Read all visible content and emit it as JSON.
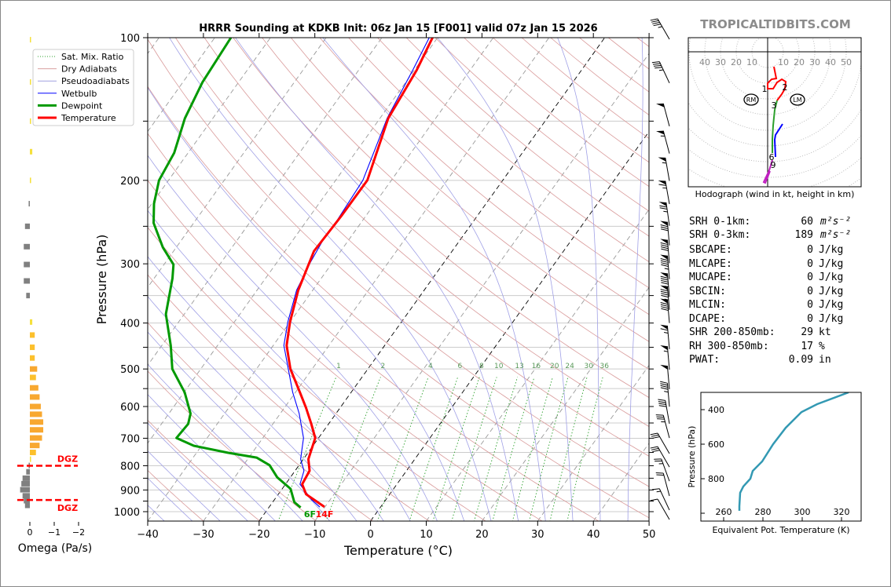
{
  "title": "HRRR Sounding at KDKB Init: 06z Jan 15 [F001] valid 07z Jan 15 2026",
  "watermark": "TROPICALTIDBITS.COM",
  "legend": [
    {
      "label": "Sat. Mix. Ratio",
      "color": "#2ca02c",
      "style": "dotted"
    },
    {
      "label": "Dry Adiabats",
      "color": "#d9a0a0",
      "style": "thin"
    },
    {
      "label": "Pseudoadiabats",
      "color": "#a0a0e0",
      "style": "thin"
    },
    {
      "label": "Wetbulb",
      "color": "#0000ff",
      "style": "solid"
    },
    {
      "label": "Dewpoint",
      "color": "#009900",
      "style": "thick"
    },
    {
      "label": "Temperature",
      "color": "#ff0000",
      "style": "thick"
    }
  ],
  "stats": [
    {
      "label": "SRH 0-1km:",
      "value": "60",
      "unit": "m²s⁻²",
      "color": "#000000"
    },
    {
      "label": "SRH 0-3km:",
      "value": "189",
      "unit": "m²s⁻²",
      "color": "#000000"
    },
    {
      "label": "SBCAPE:",
      "value": "0",
      "unit": "J/kg",
      "color": "#000000"
    },
    {
      "label": "MLCAPE:",
      "value": "0",
      "unit": "J/kg",
      "color": "#000000"
    },
    {
      "label": "MUCAPE:",
      "value": "0",
      "unit": "J/kg",
      "color": "#000000"
    },
    {
      "label": "SBCIN:",
      "value": "0",
      "unit": "J/kg",
      "color": "#000000"
    },
    {
      "label": "MLCIN:",
      "value": "0",
      "unit": "J/kg",
      "color": "#000000"
    },
    {
      "label": "DCAPE:",
      "value": "0",
      "unit": "J/kg",
      "color": "#000000"
    },
    {
      "label": "SHR 200-850mb:",
      "value": "29",
      "unit": "kt",
      "color": "#dd6633"
    },
    {
      "label": "RH 300-850mb:",
      "value": "17",
      "unit": "%",
      "color": "#a0601c"
    },
    {
      "label": "PWAT:",
      "value": "0.09",
      "unit": "in",
      "color": "#000000"
    }
  ],
  "chart_data": [
    {
      "type": "line",
      "name": "skew-t",
      "xlabel": "Temperature (°C)",
      "ylabel": "Pressure (hPa)",
      "xlim": [
        -40,
        50
      ],
      "ylim": [
        1047,
        100
      ],
      "y_scale": "log",
      "xticks": [
        -40,
        -30,
        -20,
        -10,
        0,
        10,
        20,
        30,
        40,
        50
      ],
      "yticks": [
        100,
        200,
        300,
        400,
        500,
        600,
        700,
        800,
        900,
        1000
      ],
      "grid": true,
      "legend_position": "top-left",
      "surface_labels": {
        "dewpoint": "6F",
        "temperature": "14F"
      },
      "mixing_ratio_labels": [
        1,
        2,
        4,
        6,
        8,
        10,
        13,
        16,
        20,
        24,
        30,
        36
      ],
      "series": [
        {
          "name": "Temperature",
          "color": "#ff0000",
          "points": [
            [
              977,
              -10.1
            ],
            [
              919,
              -15.0
            ],
            [
              875,
              -17.0
            ],
            [
              820,
              -17.4
            ],
            [
              775,
              -19.1
            ],
            [
              699,
              -20.6
            ],
            [
              653,
              -23.1
            ],
            [
              604,
              -26.1
            ],
            [
              560,
              -29.2
            ],
            [
              500,
              -33.9
            ],
            [
              446,
              -37.6
            ],
            [
              398,
              -40.0
            ],
            [
              341,
              -42.6
            ],
            [
              282,
              -44.8
            ],
            [
              238,
              -44.4
            ],
            [
              200,
              -44.3
            ],
            [
              148,
              -48.5
            ],
            [
              117,
              -49.6
            ],
            [
              100,
              -50.9
            ]
          ]
        },
        {
          "name": "Dewpoint",
          "color": "#009900",
          "points": [
            [
              980,
              -14.3
            ],
            [
              955,
              -16.1
            ],
            [
              895,
              -18.5
            ],
            [
              846,
              -22.4
            ],
            [
              798,
              -25.3
            ],
            [
              769,
              -28.6
            ],
            [
              751,
              -34.4
            ],
            [
              726,
              -41.4
            ],
            [
              699,
              -45.5
            ],
            [
              653,
              -45.2
            ],
            [
              621,
              -46.1
            ],
            [
              560,
              -49.9
            ],
            [
              500,
              -55.1
            ],
            [
              446,
              -58.4
            ],
            [
              383,
              -63.3
            ],
            [
              322,
              -66.7
            ],
            [
              301,
              -68.3
            ],
            [
              277,
              -72.4
            ],
            [
              246,
              -77.2
            ],
            [
              224,
              -79.6
            ],
            [
              200,
              -81.7
            ],
            [
              175,
              -82.5
            ],
            [
              148,
              -85.0
            ],
            [
              124,
              -86.5
            ],
            [
              100,
              -87.1
            ]
          ]
        },
        {
          "name": "Wetbulb",
          "color": "#0000ff",
          "points": [
            [
              978,
              -10.9
            ],
            [
              944,
              -13.3
            ],
            [
              875,
              -17.4
            ],
            [
              820,
              -18.4
            ],
            [
              775,
              -20.5
            ],
            [
              699,
              -22.7
            ],
            [
              621,
              -26.6
            ],
            [
              560,
              -30.5
            ],
            [
              446,
              -38.1
            ],
            [
              398,
              -40.4
            ],
            [
              341,
              -42.9
            ],
            [
              298,
              -44.0
            ],
            [
              267,
              -44.6
            ],
            [
              242,
              -44.6
            ],
            [
              200,
              -45.1
            ],
            [
              148,
              -48.7
            ],
            [
              117,
              -50.3
            ],
            [
              100,
              -51.5
            ]
          ]
        }
      ],
      "wind_barbs": [
        {
          "p": 97,
          "dir": 330,
          "kt": 45
        },
        {
          "p": 120,
          "dir": 335,
          "kt": 45
        },
        {
          "p": 148,
          "dir": 345,
          "kt": 50
        },
        {
          "p": 169,
          "dir": 345,
          "kt": 55
        },
        {
          "p": 193,
          "dir": 350,
          "kt": 55
        },
        {
          "p": 216,
          "dir": 350,
          "kt": 65
        },
        {
          "p": 240,
          "dir": 352,
          "kt": 75
        },
        {
          "p": 264,
          "dir": 355,
          "kt": 80
        },
        {
          "p": 288,
          "dir": 355,
          "kt": 90
        },
        {
          "p": 311,
          "dir": 355,
          "kt": 95
        },
        {
          "p": 339,
          "dir": 355,
          "kt": 95
        },
        {
          "p": 361,
          "dir": 355,
          "kt": 95
        },
        {
          "p": 385,
          "dir": 355,
          "kt": 90
        },
        {
          "p": 437,
          "dir": 355,
          "kt": 65
        },
        {
          "p": 483,
          "dir": 355,
          "kt": 55
        },
        {
          "p": 531,
          "dir": 355,
          "kt": 50
        },
        {
          "p": 578,
          "dir": 355,
          "kt": 45
        },
        {
          "p": 628,
          "dir": 350,
          "kt": 40
        },
        {
          "p": 673,
          "dir": 345,
          "kt": 35
        },
        {
          "p": 726,
          "dir": 330,
          "kt": 30
        },
        {
          "p": 775,
          "dir": 330,
          "kt": 30
        },
        {
          "p": 830,
          "dir": 340,
          "kt": 25
        },
        {
          "p": 892,
          "dir": 345,
          "kt": 20
        },
        {
          "p": 955,
          "dir": 335,
          "kt": 15
        },
        {
          "p": 1000,
          "dir": 330,
          "kt": 10
        }
      ]
    },
    {
      "type": "bar",
      "name": "omega",
      "xlabel": "Omega (Pa/s)",
      "xticks": [
        "0",
        "−1",
        "−2"
      ],
      "xlim": [
        0.5,
        -2
      ],
      "dgz_label": "DGZ",
      "dgz_pressures": [
        800,
        945
      ],
      "pressures": [
        101,
        124,
        150,
        174,
        200,
        224,
        250,
        276,
        301,
        326,
        350,
        398,
        424,
        450,
        474,
        500,
        521,
        548,
        573,
        600,
        623,
        647,
        672,
        699,
        725,
        750,
        775,
        799,
        824,
        850,
        873,
        899,
        926,
        948,
        970
      ],
      "values": [
        -0.02,
        -0.03,
        -0.03,
        -0.1,
        -0.05,
        0.05,
        0.2,
        0.25,
        0.25,
        0.25,
        0.15,
        -0.1,
        -0.2,
        -0.2,
        -0.2,
        -0.3,
        -0.25,
        -0.35,
        -0.4,
        -0.45,
        -0.5,
        -0.55,
        -0.55,
        -0.5,
        -0.4,
        -0.25,
        -0.05,
        0.05,
        0.15,
        0.3,
        0.35,
        0.4,
        0.3,
        0.25,
        0.2
      ]
    },
    {
      "type": "line",
      "name": "hodograph",
      "caption": "Hodograph (wind in kt, height in km)",
      "ring_labels_left": [
        "40",
        "30",
        "20",
        "10"
      ],
      "ring_labels_right": [
        "10",
        "20",
        "30",
        "40",
        "50"
      ],
      "segments": [
        {
          "color": "#ff0000",
          "uv": [
            [
              4,
              -9.5
            ],
            [
              5.5,
              -17
            ],
            [
              2.5,
              -17.5
            ],
            [
              0,
              -20
            ],
            [
              0,
              -23.5
            ],
            [
              3.5,
              -23.5
            ],
            [
              6,
              -19.5
            ],
            [
              9,
              -17.5
            ],
            [
              11.5,
              -19
            ],
            [
              11,
              -23.5
            ],
            [
              9,
              -27
            ],
            [
              6,
              -31
            ]
          ]
        },
        {
          "color": "#2ca02c",
          "uv": [
            [
              6,
              -31
            ],
            [
              4.5,
              -37
            ],
            [
              3.5,
              -47
            ],
            [
              3,
              -55.5
            ],
            [
              3,
              -64.5
            ]
          ]
        },
        {
          "color": "#0000ff",
          "uv": [
            [
              9.5,
              -46
            ],
            [
              5,
              -53
            ],
            [
              4.5,
              -56
            ],
            [
              5,
              -67
            ]
          ]
        },
        {
          "color": "#c020c0",
          "uv": [
            [
              3,
              -69
            ],
            [
              1,
              -75.5
            ],
            [
              -2.5,
              -83
            ],
            [
              -1.5,
              -83.5
            ],
            [
              1.5,
              -76
            ]
          ]
        }
      ],
      "height_labels": [
        {
          "text": "1",
          "uv": [
            -2,
            -23.5
          ]
        },
        {
          "text": "2",
          "uv": [
            11,
            -22.5
          ]
        },
        {
          "text": "3",
          "uv": [
            4,
            -34
          ]
        },
        {
          "text": "6",
          "uv": [
            2.5,
            -67
          ]
        },
        {
          "text": "9",
          "uv": [
            3.5,
            -72
          ]
        }
      ],
      "storm_motion": [
        {
          "text": "RM",
          "uv": [
            -10.5,
            -30.5
          ]
        },
        {
          "text": "LM",
          "uv": [
            19,
            -30.5
          ]
        }
      ]
    },
    {
      "type": "line",
      "name": "theta-e",
      "xlabel": "Equivalent Pot. Temperature (K)",
      "ylabel": "Pressure (hPa)",
      "xlim": [
        248.4,
        330
      ],
      "ylim": [
        1045,
        300
      ],
      "xticks": [
        260,
        280,
        300,
        320
      ],
      "yticks": [
        400,
        600,
        800
      ],
      "color": "#3399b3",
      "points": [
        [
          986,
          268
        ],
        [
          959,
          268
        ],
        [
          882,
          268.4
        ],
        [
          845,
          270
        ],
        [
          800,
          273.6
        ],
        [
          755,
          274.8
        ],
        [
          700,
          279.6
        ],
        [
          600,
          285.2
        ],
        [
          505,
          291.6
        ],
        [
          414,
          299.6
        ],
        [
          368,
          307.6
        ],
        [
          300,
          323.6
        ]
      ]
    }
  ]
}
